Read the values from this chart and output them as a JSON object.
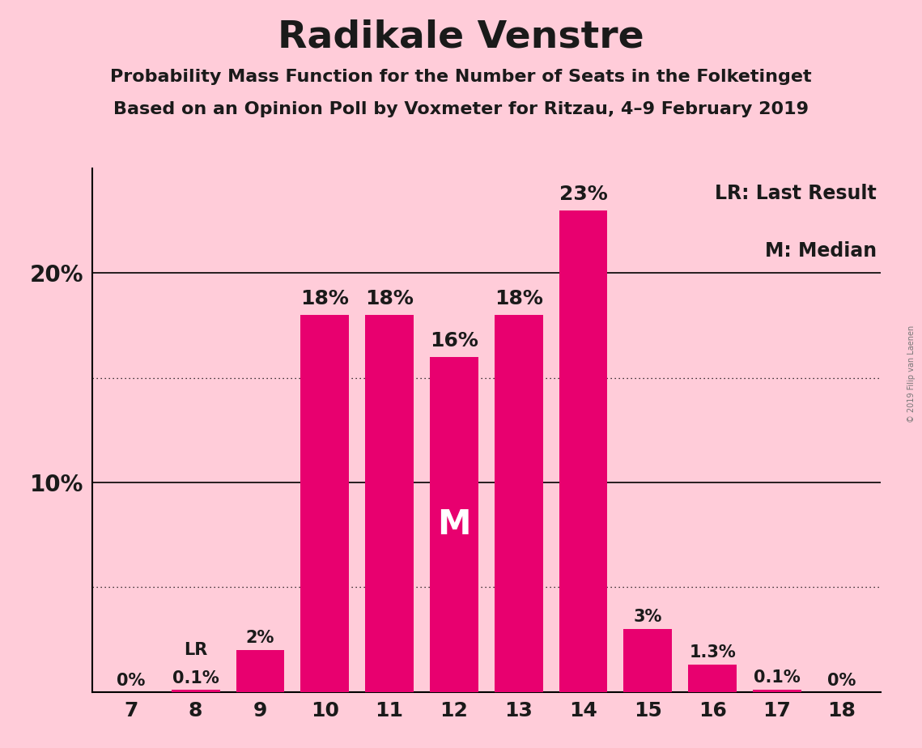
{
  "title": "Radikale Venstre",
  "subtitle1": "Probability Mass Function for the Number of Seats in the Folketinget",
  "subtitle2": "Based on an Opinion Poll by Voxmeter for Ritzau, 4–9 February 2019",
  "seats": [
    7,
    8,
    9,
    10,
    11,
    12,
    13,
    14,
    15,
    16,
    17,
    18
  ],
  "probabilities": [
    0.0,
    0.1,
    2.0,
    18.0,
    18.0,
    16.0,
    18.0,
    23.0,
    3.0,
    1.3,
    0.1,
    0.0
  ],
  "bar_labels": [
    "0%",
    "0.1%",
    "2%",
    "18%",
    "18%",
    "16%",
    "18%",
    "23%",
    "3%",
    "1.3%",
    "0.1%",
    "0%"
  ],
  "bar_color": "#E8006F",
  "background_color": "#FFCCD9",
  "text_color": "#1a1a1a",
  "median_seat": 12,
  "lr_seat": 8,
  "legend_text1": "LR: Last Result",
  "legend_text2": "M: Median",
  "watermark": "© 2019 Filip van Laenen",
  "ylim": [
    0,
    25
  ],
  "solid_gridlines": [
    10.0,
    20.0
  ],
  "dotted_gridlines": [
    5.0,
    15.0
  ],
  "label_fontsize_large": 18,
  "label_fontsize_small": 15,
  "ytick_fontsize": 20,
  "xtick_fontsize": 18
}
